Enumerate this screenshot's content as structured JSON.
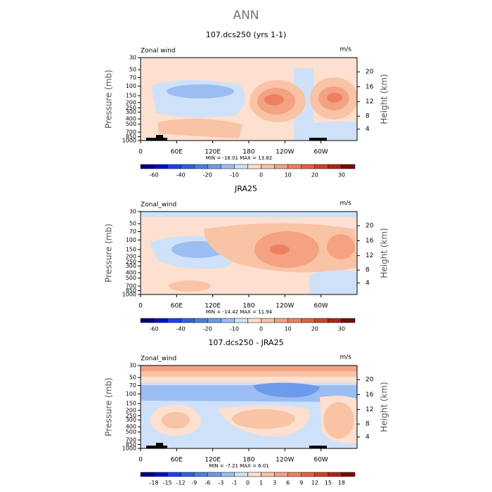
{
  "title": "ANN",
  "chart_data": [
    {
      "type": "contour",
      "title": "107.dcs250 (yrs 1-1)",
      "left_label": "Zonal wind",
      "right_label": "m/s",
      "ylabel": "Pressure (mb)",
      "y2label": "Height (km)",
      "stats": "MIN = -16.01   MAX =  13.82",
      "ylim": [
        1000,
        30
      ],
      "log_y": true,
      "yticks": [
        30,
        50,
        70,
        100,
        150,
        200,
        250,
        300,
        400,
        500,
        700,
        850,
        1000
      ],
      "y2ticks": [
        4,
        8,
        12,
        16,
        20
      ],
      "xlim": [
        0,
        360
      ],
      "xticks": [
        0,
        {
          "value": 60,
          "label": "60E"
        },
        {
          "value": 120,
          "label": "120E"
        },
        180,
        {
          "value": 240,
          "label": "120W"
        },
        {
          "value": 300,
          "label": "60W"
        }
      ],
      "colorbar_ticks": [
        -60,
        -40,
        -20,
        -10,
        0,
        10,
        20,
        30
      ],
      "colors": [
        "#00007a",
        "#0010c8",
        "#1e3cff",
        "#2e5ee6",
        "#4a7de6",
        "#6d9beb",
        "#9bbdf2",
        "#cfe1f8",
        "#fde0cf",
        "#f9c3a6",
        "#f4a282",
        "#ee8060",
        "#e4603f",
        "#d24127",
        "#b0221a",
        "#7a0a0a"
      ]
    },
    {
      "type": "contour",
      "title": "JRA25",
      "left_label": "Zonal_wind",
      "right_label": "m/s",
      "ylabel": "Pressure (mb)",
      "y2label": "Height (km)",
      "stats": "MIN = -14.42   MAX =  11.94",
      "ylim": [
        1000,
        30
      ],
      "log_y": true,
      "yticks": [
        30,
        50,
        70,
        100,
        150,
        200,
        250,
        300,
        400,
        500,
        700,
        850,
        1000
      ],
      "y2ticks": [
        4,
        8,
        12,
        16,
        20
      ],
      "xlim": [
        0,
        360
      ],
      "xticks": [
        0,
        {
          "value": 60,
          "label": "60E"
        },
        {
          "value": 120,
          "label": "120E"
        },
        180,
        {
          "value": 240,
          "label": "120W"
        },
        {
          "value": 300,
          "label": "60W"
        }
      ],
      "colorbar_ticks": [
        -60,
        -40,
        -20,
        -10,
        0,
        10,
        20,
        30
      ],
      "colors": [
        "#00007a",
        "#0010c8",
        "#1e3cff",
        "#2e5ee6",
        "#4a7de6",
        "#6d9beb",
        "#9bbdf2",
        "#cfe1f8",
        "#fde0cf",
        "#f9c3a6",
        "#f4a282",
        "#ee8060",
        "#e4603f",
        "#d24127",
        "#b0221a",
        "#7a0a0a"
      ]
    },
    {
      "type": "contour",
      "title": "107.dcs250 - JRA25",
      "left_label": "Zonal_wind",
      "right_label": "m/s",
      "ylabel": "Pressure (mb)",
      "y2label": "Height (km)",
      "stats": "MIN = -7.21   MAX =  6.01",
      "ylim": [
        1000,
        30
      ],
      "log_y": true,
      "yticks": [
        30,
        50,
        70,
        100,
        150,
        200,
        250,
        300,
        400,
        500,
        700,
        850,
        1000
      ],
      "y2ticks": [
        4,
        8,
        12,
        16,
        20
      ],
      "xlim": [
        0,
        360
      ],
      "xticks": [
        0,
        {
          "value": 60,
          "label": "60E"
        },
        {
          "value": 120,
          "label": "120E"
        },
        180,
        {
          "value": 240,
          "label": "120W"
        },
        {
          "value": 300,
          "label": "60W"
        }
      ],
      "colorbar_ticks": [
        -18,
        -15,
        -12,
        -9,
        -6,
        -3,
        -1,
        0,
        1,
        3,
        6,
        9,
        12,
        15,
        18
      ],
      "colors": [
        "#00007a",
        "#0010c8",
        "#1e3cff",
        "#2e5ee6",
        "#4a7de6",
        "#6d9beb",
        "#9bbdf2",
        "#cfe1f8",
        "#fde0cf",
        "#f9c3a6",
        "#f4a282",
        "#ee8060",
        "#e4603f",
        "#d24127",
        "#b0221a",
        "#7a0a0a"
      ]
    }
  ]
}
